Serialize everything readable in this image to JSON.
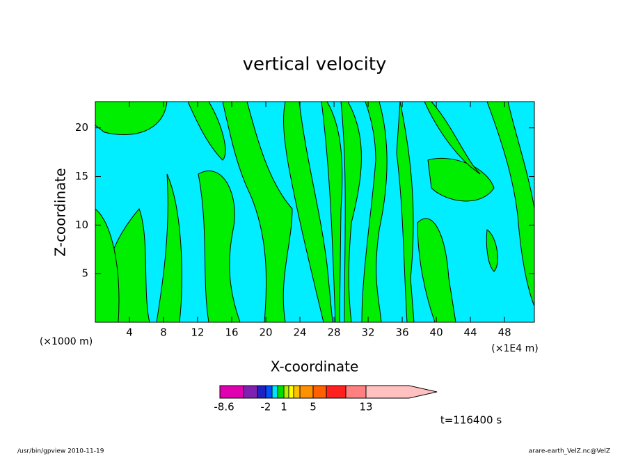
{
  "chart_data": {
    "type": "contour",
    "title": "vertical velocity",
    "x_label": "X-coordinate",
    "y_label": "Z-coordinate",
    "x_unit_left": "(×1000 m)",
    "x_unit_right": "(×1E4 m)",
    "xlim": [
      0,
      51.5
    ],
    "ylim": [
      0,
      22.7
    ],
    "xticks": [
      4,
      8,
      12,
      16,
      20,
      24,
      28,
      32,
      36,
      40,
      44,
      48
    ],
    "yticks": [
      5,
      10,
      15,
      20
    ],
    "colorbar": {
      "colors": [
        "#e000b0",
        "#8020b0",
        "#2020c0",
        "#0050ff",
        "#00e0ff",
        "#00e000",
        "#b0f000",
        "#ffff00",
        "#ffc000",
        "#ff9000",
        "#ff6000",
        "#ff2020",
        "#ff8080",
        "#ffc0c0"
      ],
      "levels": [
        -8.6,
        null,
        null,
        -2,
        null,
        null,
        1,
        null,
        null,
        null,
        5,
        null,
        null,
        13,
        null
      ]
    },
    "annotation": "t=116400 s",
    "footer_left": "/usr/bin/gpview   2010-11-19",
    "footer_right": "arare-earth_VelZ.nc@VelZ"
  }
}
